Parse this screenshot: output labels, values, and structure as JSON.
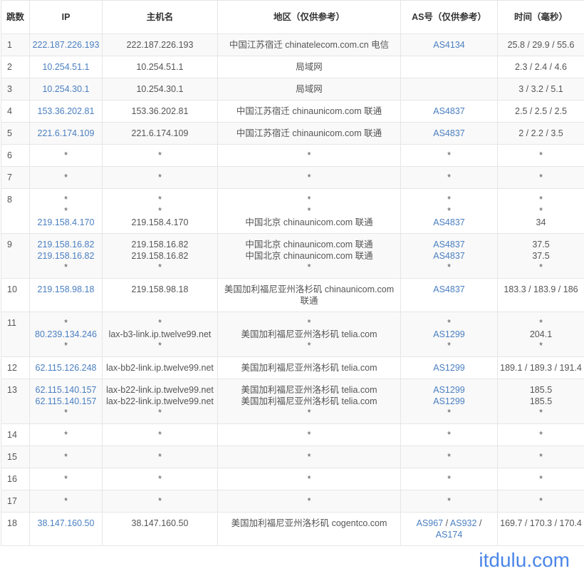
{
  "colors": {
    "link": "#4a7fc1",
    "text": "#555555",
    "row_alt": "#f9f9f9",
    "watermark": "#4a86e8"
  },
  "headers": [
    "跳数",
    "IP",
    "主机名",
    "地区（仅供参考）",
    "AS号（仅供参考）",
    "时间（毫秒）"
  ],
  "rows": [
    {
      "hop": "1",
      "ip": [
        "222.187.226.193"
      ],
      "host": [
        "222.187.226.193"
      ],
      "region": [
        "中国江苏宿迁 chinatelecom.com.cn 电信"
      ],
      "as": [
        "AS4134"
      ],
      "time": [
        "25.8 / 29.9 / 55.6"
      ]
    },
    {
      "hop": "2",
      "ip": [
        "10.254.51.1"
      ],
      "host": [
        "10.254.51.1"
      ],
      "region": [
        "局域网"
      ],
      "as": [],
      "time": [
        "2.3 / 2.4 / 4.6"
      ]
    },
    {
      "hop": "3",
      "ip": [
        "10.254.30.1"
      ],
      "host": [
        "10.254.30.1"
      ],
      "region": [
        "局域网"
      ],
      "as": [],
      "time": [
        "3 / 3.2 / 5.1"
      ]
    },
    {
      "hop": "4",
      "ip": [
        "153.36.202.81"
      ],
      "host": [
        "153.36.202.81"
      ],
      "region": [
        "中国江苏宿迁 chinaunicom.com 联通"
      ],
      "as": [
        "AS4837"
      ],
      "time": [
        "2.5 / 2.5 / 2.5"
      ]
    },
    {
      "hop": "5",
      "ip": [
        "221.6.174.109"
      ],
      "host": [
        "221.6.174.109"
      ],
      "region": [
        "中国江苏宿迁 chinaunicom.com 联通"
      ],
      "as": [
        "AS4837"
      ],
      "time": [
        "2 / 2.2 / 3.5"
      ]
    },
    {
      "hop": "6",
      "ip": [
        "*"
      ],
      "host": [
        "*"
      ],
      "region": [
        "*"
      ],
      "as": [
        "*"
      ],
      "time": [
        "*"
      ]
    },
    {
      "hop": "7",
      "ip": [
        "*"
      ],
      "host": [
        "*"
      ],
      "region": [
        "*"
      ],
      "as": [
        "*"
      ],
      "time": [
        "*"
      ]
    },
    {
      "hop": "8",
      "ip": [
        "*",
        "*",
        "219.158.4.170"
      ],
      "host": [
        "*",
        "*",
        "219.158.4.170"
      ],
      "region": [
        "*",
        "*",
        "中国北京 chinaunicom.com 联通"
      ],
      "as": [
        "*",
        "*",
        "AS4837"
      ],
      "time": [
        "*",
        "*",
        "34"
      ]
    },
    {
      "hop": "9",
      "ip": [
        "219.158.16.82",
        "219.158.16.82",
        "*"
      ],
      "host": [
        "219.158.16.82",
        "219.158.16.82",
        "*"
      ],
      "region": [
        "中国北京 chinaunicom.com 联通",
        "中国北京 chinaunicom.com 联通",
        "*"
      ],
      "as": [
        "AS4837",
        "AS4837",
        "*"
      ],
      "time": [
        "37.5",
        "37.5",
        "*"
      ]
    },
    {
      "hop": "10",
      "ip": [
        "219.158.98.18"
      ],
      "host": [
        "219.158.98.18"
      ],
      "region": [
        "美国加利福尼亚州洛杉矶 chinaunicom.com 联通"
      ],
      "as": [
        "AS4837"
      ],
      "time": [
        "183.3 / 183.9 / 186"
      ]
    },
    {
      "hop": "11",
      "ip": [
        "*",
        "80.239.134.246",
        "*"
      ],
      "host": [
        "*",
        "lax-b3-link.ip.twelve99.net",
        "*"
      ],
      "region": [
        "*",
        "美国加利福尼亚州洛杉矶 telia.com",
        "*"
      ],
      "as": [
        "*",
        "AS1299",
        "*"
      ],
      "time": [
        "*",
        "204.1",
        "*"
      ]
    },
    {
      "hop": "12",
      "ip": [
        "62.115.126.248"
      ],
      "host": [
        "lax-bb2-link.ip.twelve99.net"
      ],
      "region": [
        "美国加利福尼亚州洛杉矶 telia.com"
      ],
      "as": [
        "AS1299"
      ],
      "time": [
        "189.1 / 189.3 / 191.4"
      ]
    },
    {
      "hop": "13",
      "ip": [
        "62.115.140.157",
        "62.115.140.157",
        "*"
      ],
      "host": [
        "lax-b22-link.ip.twelve99.net",
        "lax-b22-link.ip.twelve99.net",
        "*"
      ],
      "region": [
        "美国加利福尼亚州洛杉矶 telia.com",
        "美国加利福尼亚州洛杉矶 telia.com",
        "*"
      ],
      "as": [
        "AS1299",
        "AS1299",
        "*"
      ],
      "time": [
        "185.5",
        "185.5",
        "*"
      ]
    },
    {
      "hop": "14",
      "ip": [
        "*"
      ],
      "host": [
        "*"
      ],
      "region": [
        "*"
      ],
      "as": [
        "*"
      ],
      "time": [
        "*"
      ]
    },
    {
      "hop": "15",
      "ip": [
        "*"
      ],
      "host": [
        "*"
      ],
      "region": [
        "*"
      ],
      "as": [
        "*"
      ],
      "time": [
        "*"
      ]
    },
    {
      "hop": "16",
      "ip": [
        "*"
      ],
      "host": [
        "*"
      ],
      "region": [
        "*"
      ],
      "as": [
        "*"
      ],
      "time": [
        "*"
      ]
    },
    {
      "hop": "17",
      "ip": [
        "*"
      ],
      "host": [
        "*"
      ],
      "region": [
        "*"
      ],
      "as": [
        "*"
      ],
      "time": [
        "*"
      ]
    },
    {
      "hop": "18",
      "ip": [
        "38.147.160.50"
      ],
      "host": [
        "38.147.160.50"
      ],
      "region": [
        "美国加利福尼亚州洛杉矶 cogentco.com"
      ],
      "as": [
        "AS967 / AS932 / AS174"
      ],
      "time": [
        "169.7 / 170.3 / 170.4"
      ]
    }
  ],
  "watermark": "itdulu.com"
}
